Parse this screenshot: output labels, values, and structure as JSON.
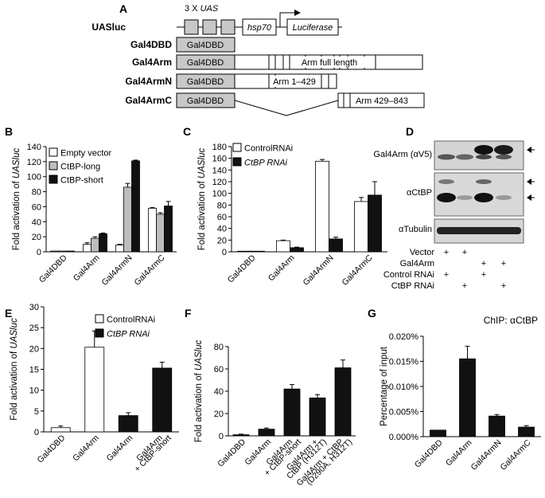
{
  "panel_a": {
    "letter": "A",
    "reporter_label": "UASluc",
    "uas_label": "3 X UAS",
    "promoter_label": "hsp70",
    "gene_label": "Luciferase",
    "constructs": [
      {
        "name": "Gal4DBD",
        "domain_label": "Gal4DBD",
        "insert_label": ""
      },
      {
        "name": "Gal4Arm",
        "domain_label": "Gal4DBD",
        "insert_label": "Arm full length"
      },
      {
        "name": "Gal4ArmN",
        "domain_label": "Gal4DBD",
        "insert_label": "Arm 1–429"
      },
      {
        "name": "Gal4ArmC",
        "domain_label": "Gal4DBD",
        "insert_label": "Arm 429–843"
      }
    ]
  },
  "panel_d": {
    "letter": "D",
    "blots": [
      "Gal4Arm (αV5)",
      "αCtBP",
      "αTubulin"
    ],
    "conditions": [
      {
        "label": "Vector",
        "marks": [
          "+",
          "+",
          "",
          ""
        ]
      },
      {
        "label": "Gal4Arm",
        "marks": [
          "",
          "",
          "+",
          "+"
        ]
      },
      {
        "label": "Control RNAi",
        "marks": [
          "+",
          "",
          "+",
          ""
        ]
      },
      {
        "label": "CtBP RNAi",
        "marks": [
          "",
          "+",
          "",
          "+"
        ]
      }
    ]
  },
  "colors": {
    "white_bar": "#ffffff",
    "grey_bar": "#bdbdbd",
    "black_bar": "#111111",
    "domain_box": "#c8c8c8"
  },
  "chart_data": [
    {
      "panel": "B",
      "type": "bar",
      "ylabel_prefix": "Fold activation of ",
      "ylabel_em": "UASluc",
      "ylim": [
        0,
        140
      ],
      "yticks": [
        0,
        20,
        40,
        60,
        80,
        100,
        120,
        140
      ],
      "categories": [
        "Gal4DBD",
        "Gal4Arm",
        "Gal4ArmN",
        "Gal4ArmC"
      ],
      "series": [
        {
          "name": "Empty vector",
          "color": "#ffffff",
          "values": [
            1,
            10,
            9,
            58
          ],
          "errors": [
            0,
            2,
            1,
            1
          ]
        },
        {
          "name": "CtBP-long",
          "color": "#bdbdbd",
          "values": [
            1,
            18,
            86,
            50
          ],
          "errors": [
            0,
            2,
            5,
            2
          ]
        },
        {
          "name": "CtBP-short",
          "color": "#111111",
          "values": [
            1,
            24,
            121,
            61
          ],
          "errors": [
            0,
            1,
            1,
            6
          ]
        }
      ]
    },
    {
      "panel": "C",
      "type": "bar",
      "ylabel_prefix": "Fold activation of ",
      "ylabel_em": "UASluc",
      "ylim": [
        0,
        180
      ],
      "yticks": [
        0,
        20,
        40,
        60,
        80,
        100,
        120,
        140,
        160,
        180
      ],
      "categories": [
        "Gal4DBD",
        "Gal4Arm",
        "Gal4ArmN",
        "Gal4ArmC"
      ],
      "series": [
        {
          "name": "ControlRNAi",
          "color": "#ffffff",
          "values": [
            1,
            19,
            155,
            86
          ],
          "errors": [
            0,
            1,
            3,
            7
          ]
        },
        {
          "name": "CtBP RNAi",
          "italic": true,
          "color": "#111111",
          "values": [
            1,
            7,
            22,
            97
          ],
          "errors": [
            0,
            1,
            3,
            23
          ]
        }
      ]
    },
    {
      "panel": "E",
      "type": "bar",
      "ylabel_prefix": "Fold activation of ",
      "ylabel_em": "UASluc",
      "ylim": [
        0,
        30
      ],
      "yticks": [
        0,
        5,
        10,
        15,
        20,
        25,
        30
      ],
      "categories": [
        "Gal4DBD",
        "Gal4Arm",
        "Gal4Arm",
        "Gal4Arm\n+ CtBP-short"
      ],
      "bars": [
        {
          "value": 1,
          "error": 0.4,
          "color": "#ffffff"
        },
        {
          "value": 20.3,
          "error": 3.9,
          "color": "#ffffff"
        },
        {
          "value": 3.9,
          "error": 0.7,
          "color": "#111111"
        },
        {
          "value": 15.3,
          "error": 1.4,
          "color": "#111111"
        }
      ],
      "legend": [
        {
          "name": "ControlRNAi",
          "color": "#ffffff"
        },
        {
          "name": "CtBP RNAi",
          "italic": true,
          "color": "#111111"
        }
      ]
    },
    {
      "panel": "F",
      "type": "bar",
      "ylabel_prefix": "Fold activation of ",
      "ylabel_em": "UASluc",
      "ylim": [
        0,
        80
      ],
      "yticks": [
        0,
        20,
        40,
        60,
        80
      ],
      "categories": [
        "Gal4DBD",
        "Gal4Arm",
        "Gal4Arm\n+ CtBP-short",
        "Gal4Arm +\nCtBP (H312T)",
        "Gal4Arm + CtBP\n(D290A, H312T)"
      ],
      "values": [
        1,
        6,
        42,
        34,
        61
      ],
      "errors": [
        0.5,
        1,
        4,
        3,
        7
      ],
      "color": "#111111"
    },
    {
      "panel": "G",
      "type": "bar",
      "ylabel": "Percentage of input",
      "annotation": "ChIP: αCtBP",
      "ylim": [
        0,
        0.02
      ],
      "ytick_labels": [
        "0.000%",
        "0.005%",
        "0.010%",
        "0.015%",
        "0.020%"
      ],
      "yticks": [
        0,
        0.005,
        0.01,
        0.015,
        0.02
      ],
      "categories": [
        "Gal4DBD",
        "Gal4Arm",
        "Gal4ArmN",
        "Gal4ArmC"
      ],
      "values": [
        0.0013,
        0.0155,
        0.0041,
        0.0019
      ],
      "errors": [
        0,
        0.0025,
        0.0003,
        0.0003
      ],
      "color": "#111111"
    }
  ]
}
